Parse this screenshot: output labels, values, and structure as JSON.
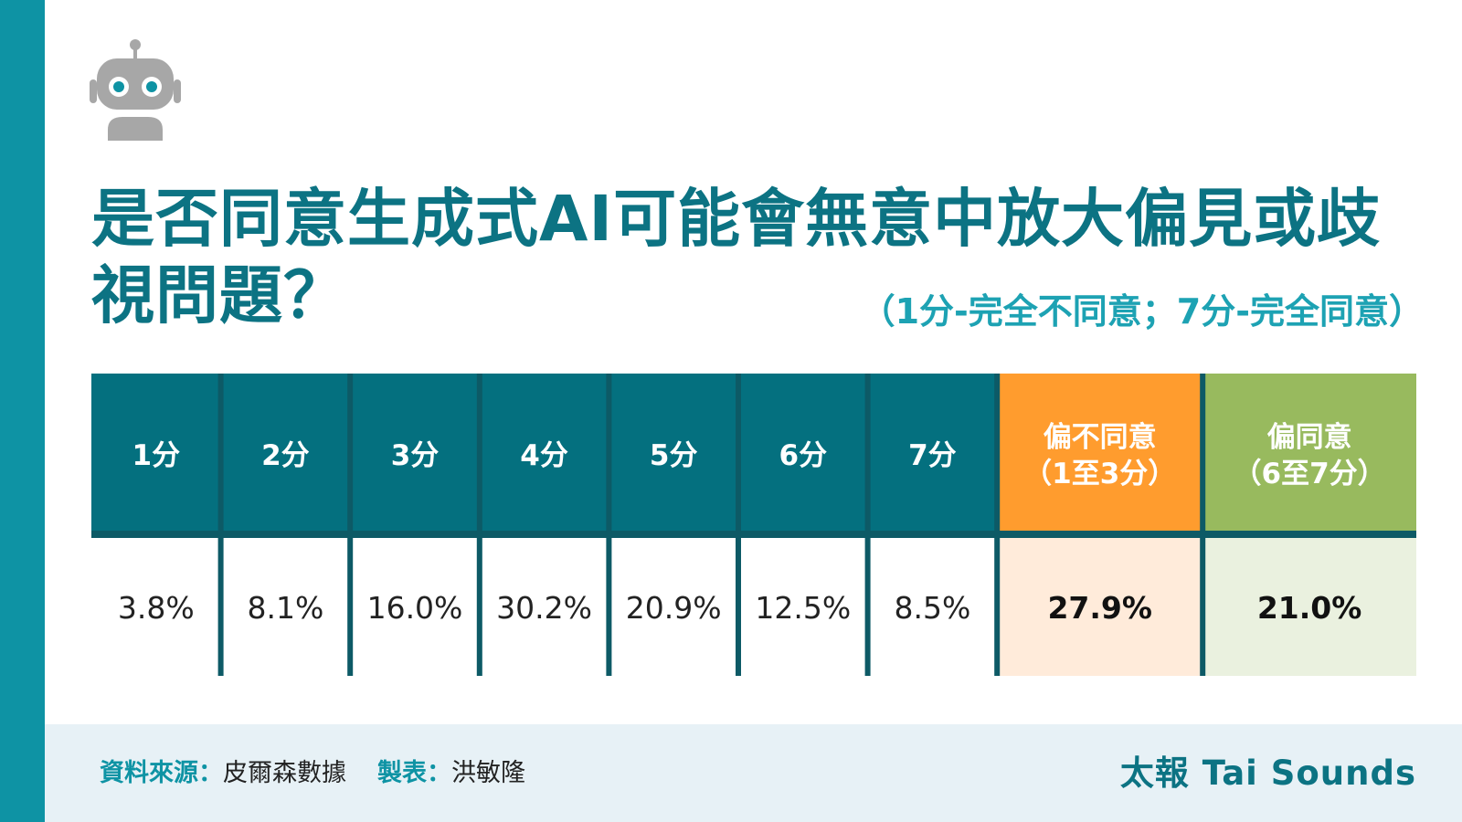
{
  "title": "是否同意生成式AI可能會無意中放大偏見或歧視問題？",
  "subtitle": "（1分-完全不同意；7分-完全同意）",
  "chart_data": {
    "type": "table",
    "columns": [
      {
        "label": "1分",
        "value": "3.8%",
        "kind": "score"
      },
      {
        "label": "2分",
        "value": "8.1%",
        "kind": "score"
      },
      {
        "label": "3分",
        "value": "16.0%",
        "kind": "score"
      },
      {
        "label": "4分",
        "value": "30.2%",
        "kind": "score"
      },
      {
        "label": "5分",
        "value": "20.9%",
        "kind": "score"
      },
      {
        "label": "6分",
        "value": "12.5%",
        "kind": "score"
      },
      {
        "label": "7分",
        "value": "8.5%",
        "kind": "score"
      },
      {
        "label": "偏不同意",
        "label2": "（1至3分）",
        "value": "27.9%",
        "kind": "disagree"
      },
      {
        "label": "偏同意",
        "label2": "（6至7分）",
        "value": "21.0%",
        "kind": "agree"
      }
    ]
  },
  "colors": {
    "teal_dark": "#04707F",
    "teal_side": "#0E93A4",
    "grid_line": "#0D5A66",
    "orange": "#FF9C2E",
    "orange_light": "#FFEBDA",
    "green": "#98BA5E",
    "green_light": "#EAF1DF"
  },
  "footer": {
    "source_key": "資料來源：",
    "source_value": "皮爾森數據",
    "maker_key": "製表：",
    "maker_value": "洪敏隆",
    "brand": "太報 Tai Sounds"
  },
  "icons": {
    "logo": "robot-icon"
  }
}
